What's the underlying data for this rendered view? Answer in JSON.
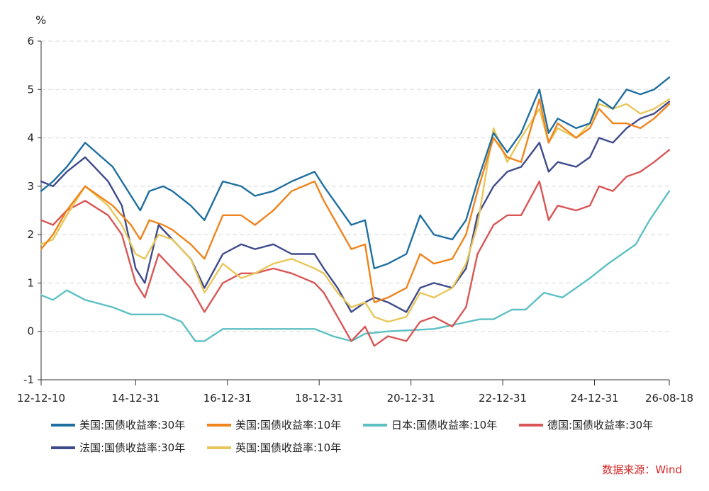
{
  "chart_data": {
    "type": "line",
    "title": "",
    "xlabel": "",
    "ylabel": "%",
    "ylim": [
      -1,
      6
    ],
    "yticks": [
      -1,
      0,
      1,
      2,
      3,
      4,
      5,
      6
    ],
    "xlim": [
      2012.94,
      2026.63
    ],
    "xticks": [
      {
        "label": "12-12-10",
        "x": 2012.94
      },
      {
        "label": "14-12-31",
        "x": 2015.0
      },
      {
        "label": "16-12-31",
        "x": 2017.0
      },
      {
        "label": "18-12-31",
        "x": 2019.0
      },
      {
        "label": "20-12-31",
        "x": 2021.0
      },
      {
        "label": "22-12-31",
        "x": 2023.0
      },
      {
        "label": "24-12-31",
        "x": 2025.0
      },
      {
        "label": "26-08-18",
        "x": 2026.63
      }
    ],
    "grid": true,
    "legend_position": "bottom",
    "series": [
      {
        "name": "美国:国债收益率:30年",
        "color": "#1f6f9f",
        "x": [
          2012.94,
          2013.2,
          2013.5,
          2013.9,
          2014.5,
          2014.9,
          2015.1,
          2015.3,
          2015.6,
          2015.8,
          2016.2,
          2016.5,
          2016.9,
          2017.3,
          2017.6,
          2018.0,
          2018.4,
          2018.9,
          2019.1,
          2019.4,
          2019.7,
          2020.0,
          2020.2,
          2020.5,
          2020.9,
          2021.2,
          2021.5,
          2021.9,
          2022.2,
          2022.45,
          2022.8,
          2023.1,
          2023.4,
          2023.8,
          2024.0,
          2024.2,
          2024.6,
          2024.9,
          2025.1,
          2025.4,
          2025.7,
          2026.0,
          2026.3,
          2026.63
        ],
        "y": [
          2.9,
          3.1,
          3.4,
          3.9,
          3.4,
          2.8,
          2.5,
          2.9,
          3.0,
          2.9,
          2.6,
          2.3,
          3.1,
          3.0,
          2.8,
          2.9,
          3.1,
          3.3,
          3.0,
          2.6,
          2.2,
          2.3,
          1.3,
          1.4,
          1.6,
          2.4,
          2.0,
          1.9,
          2.3,
          3.1,
          4.1,
          3.7,
          4.1,
          5.0,
          4.1,
          4.4,
          4.2,
          4.3,
          4.8,
          4.6,
          5.0,
          4.9,
          5.0,
          5.25
        ]
      },
      {
        "name": "美国:国债收益率:10年",
        "color": "#f0841c",
        "x": [
          2012.94,
          2013.2,
          2013.5,
          2013.9,
          2014.5,
          2014.9,
          2015.1,
          2015.3,
          2015.6,
          2015.8,
          2016.2,
          2016.5,
          2016.9,
          2017.3,
          2017.6,
          2018.0,
          2018.4,
          2018.9,
          2019.1,
          2019.4,
          2019.7,
          2020.0,
          2020.2,
          2020.5,
          2020.9,
          2021.2,
          2021.5,
          2021.9,
          2022.2,
          2022.45,
          2022.8,
          2023.1,
          2023.4,
          2023.8,
          2024.0,
          2024.2,
          2024.6,
          2024.9,
          2025.1,
          2025.4,
          2025.7,
          2026.0,
          2026.3,
          2026.63
        ],
        "y": [
          1.7,
          2.0,
          2.5,
          3.0,
          2.6,
          2.2,
          1.9,
          2.3,
          2.2,
          2.1,
          1.8,
          1.5,
          2.4,
          2.4,
          2.2,
          2.5,
          2.9,
          3.1,
          2.7,
          2.2,
          1.7,
          1.8,
          0.6,
          0.7,
          0.9,
          1.6,
          1.4,
          1.5,
          2.0,
          2.9,
          4.0,
          3.6,
          3.5,
          4.8,
          3.9,
          4.3,
          4.0,
          4.2,
          4.6,
          4.3,
          4.3,
          4.2,
          4.4,
          4.7
        ]
      },
      {
        "name": "日本:国债收益率:10年",
        "color": "#5cc0c4",
        "x": [
          2012.94,
          2013.2,
          2013.5,
          2013.9,
          2014.5,
          2014.9,
          2015.1,
          2015.6,
          2016.0,
          2016.3,
          2016.5,
          2016.9,
          2017.5,
          2018.0,
          2018.5,
          2018.9,
          2019.3,
          2019.7,
          2020.0,
          2020.5,
          2020.9,
          2021.5,
          2022.0,
          2022.5,
          2022.8,
          2023.2,
          2023.5,
          2023.9,
          2024.3,
          2024.6,
          2024.9,
          2025.3,
          2025.6,
          2025.9,
          2026.2,
          2026.63
        ],
        "y": [
          0.75,
          0.65,
          0.85,
          0.65,
          0.5,
          0.35,
          0.35,
          0.35,
          0.2,
          -0.2,
          -0.2,
          0.05,
          0.05,
          0.05,
          0.05,
          0.05,
          -0.1,
          -0.2,
          -0.05,
          0.0,
          0.02,
          0.05,
          0.15,
          0.25,
          0.25,
          0.45,
          0.45,
          0.8,
          0.7,
          0.9,
          1.1,
          1.4,
          1.6,
          1.8,
          2.3,
          2.9
        ]
      },
      {
        "name": "德国:国债收益率:30年",
        "color": "#d95656",
        "x": [
          2012.94,
          2013.2,
          2013.5,
          2013.9,
          2014.4,
          2014.7,
          2015.0,
          2015.2,
          2015.5,
          2015.8,
          2016.2,
          2016.5,
          2016.9,
          2017.3,
          2017.6,
          2018.0,
          2018.4,
          2018.9,
          2019.1,
          2019.4,
          2019.7,
          2020.0,
          2020.2,
          2020.5,
          2020.9,
          2021.2,
          2021.5,
          2021.9,
          2022.2,
          2022.45,
          2022.8,
          2023.1,
          2023.4,
          2023.8,
          2024.0,
          2024.2,
          2024.6,
          2024.9,
          2025.1,
          2025.4,
          2025.7,
          2026.0,
          2026.3,
          2026.63
        ],
        "y": [
          2.3,
          2.2,
          2.5,
          2.7,
          2.4,
          2.0,
          1.0,
          0.7,
          1.6,
          1.3,
          0.9,
          0.4,
          1.0,
          1.2,
          1.2,
          1.3,
          1.2,
          1.0,
          0.8,
          0.3,
          -0.2,
          0.1,
          -0.3,
          -0.1,
          -0.2,
          0.2,
          0.3,
          0.1,
          0.5,
          1.6,
          2.2,
          2.4,
          2.4,
          3.1,
          2.3,
          2.6,
          2.5,
          2.6,
          3.0,
          2.9,
          3.2,
          3.3,
          3.5,
          3.75
        ]
      },
      {
        "name": "法国:国债收益率:30年",
        "color": "#3f4a8a",
        "x": [
          2012.94,
          2013.2,
          2013.5,
          2013.9,
          2014.4,
          2014.7,
          2015.0,
          2015.2,
          2015.5,
          2015.8,
          2016.2,
          2016.5,
          2016.9,
          2017.3,
          2017.6,
          2018.0,
          2018.4,
          2018.9,
          2019.1,
          2019.4,
          2019.7,
          2020.0,
          2020.2,
          2020.5,
          2020.9,
          2021.2,
          2021.5,
          2021.9,
          2022.2,
          2022.45,
          2022.8,
          2023.1,
          2023.4,
          2023.8,
          2024.0,
          2024.2,
          2024.6,
          2024.9,
          2025.1,
          2025.4,
          2025.7,
          2026.0,
          2026.3,
          2026.63
        ],
        "y": [
          3.1,
          3.0,
          3.3,
          3.6,
          3.1,
          2.6,
          1.3,
          1.0,
          2.2,
          1.9,
          1.5,
          0.9,
          1.6,
          1.8,
          1.7,
          1.8,
          1.6,
          1.6,
          1.3,
          0.9,
          0.4,
          0.6,
          0.7,
          0.6,
          0.4,
          0.9,
          1.0,
          0.9,
          1.3,
          2.4,
          3.0,
          3.3,
          3.4,
          3.9,
          3.3,
          3.5,
          3.4,
          3.6,
          4.0,
          3.9,
          4.2,
          4.4,
          4.5,
          4.75
        ]
      },
      {
        "name": "英国:国债收益率:10年",
        "color": "#e8c75a",
        "x": [
          2012.94,
          2013.2,
          2013.5,
          2013.9,
          2014.4,
          2014.7,
          2015.0,
          2015.2,
          2015.5,
          2015.8,
          2016.2,
          2016.5,
          2016.9,
          2017.3,
          2017.6,
          2018.0,
          2018.4,
          2018.9,
          2019.1,
          2019.4,
          2019.7,
          2020.0,
          2020.2,
          2020.5,
          2020.9,
          2021.2,
          2021.5,
          2021.9,
          2022.2,
          2022.45,
          2022.8,
          2023.1,
          2023.4,
          2023.8,
          2024.0,
          2024.2,
          2024.6,
          2024.9,
          2025.1,
          2025.4,
          2025.7,
          2026.0,
          2026.3,
          2026.63
        ],
        "y": [
          1.8,
          1.9,
          2.4,
          3.0,
          2.6,
          2.2,
          1.6,
          1.5,
          2.0,
          1.9,
          1.5,
          0.8,
          1.4,
          1.1,
          1.2,
          1.4,
          1.5,
          1.3,
          1.2,
          0.8,
          0.5,
          0.6,
          0.3,
          0.2,
          0.3,
          0.8,
          0.7,
          0.9,
          1.4,
          2.2,
          4.2,
          3.5,
          4.0,
          4.6,
          3.9,
          4.2,
          4.0,
          4.3,
          4.7,
          4.6,
          4.7,
          4.5,
          4.6,
          4.8
        ]
      }
    ]
  },
  "source_text": "数据来源：Wind"
}
